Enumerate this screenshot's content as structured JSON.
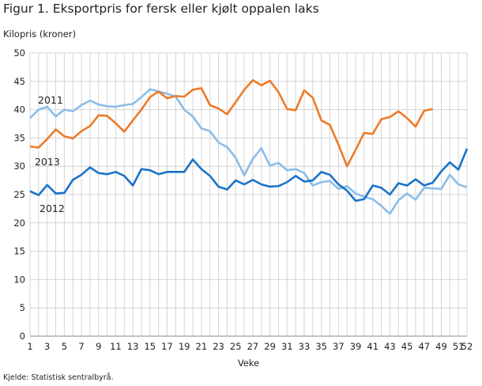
{
  "title": "Figur 1. Eksportpris for fersk eller kjølt oppalen laks",
  "source": "Kjelde: Statistisk sentralbyrå.",
  "chart_data": {
    "type": "line",
    "title": "Figur 1. Eksportpris for fersk eller kjølt oppalen laks",
    "ylabel": "Kilopris (kroner)",
    "xlabel": "Veke",
    "ylim": [
      0,
      50
    ],
    "yticks": [
      0,
      5,
      10,
      15,
      20,
      25,
      30,
      35,
      40,
      45,
      50
    ],
    "xlim": [
      1,
      52
    ],
    "xticks": [
      1,
      3,
      5,
      7,
      9,
      11,
      13,
      15,
      17,
      19,
      21,
      23,
      25,
      27,
      29,
      31,
      33,
      35,
      37,
      39,
      41,
      43,
      45,
      47,
      49,
      51,
      52
    ],
    "grid": true,
    "series": [
      {
        "name": "2011",
        "color": "#8bbde8",
        "values": [
          38.5,
          40,
          40.5,
          38.8,
          40,
          39.7,
          40.8,
          41.6,
          40.9,
          40.6,
          40.5,
          40.8,
          41,
          42.2,
          43.6,
          43.2,
          42.8,
          42.3,
          40,
          38.8,
          36.7,
          36.2,
          34.2,
          33.4,
          31.5,
          28.4,
          31.3,
          33.2,
          30.1,
          30.6,
          29.3,
          29.5,
          28.8,
          26.6,
          27.2,
          27.4,
          26.0,
          26.5,
          25.2,
          24.6,
          24.2,
          23.0,
          21.6,
          24.0,
          25.2,
          24.1,
          26.2,
          26.1,
          26.0,
          28.5,
          26.8,
          26.3
        ]
      },
      {
        "name": "2012",
        "color": "#1a73c9",
        "values": [
          25.6,
          24.9,
          26.7,
          25.2,
          25.3,
          27.6,
          28.5,
          29.8,
          28.8,
          28.6,
          29,
          28.3,
          26.6,
          29.5,
          29.3,
          28.6,
          29,
          29,
          29,
          31.2,
          29.5,
          28.3,
          26.4,
          25.9,
          27.5,
          26.8,
          27.6,
          26.8,
          26.4,
          26.5,
          27.2,
          28.3,
          27.3,
          27.5,
          29,
          28.5,
          26.8,
          25.7,
          23.9,
          24.2,
          26.6,
          26.2,
          25,
          27,
          26.6,
          27.7,
          26.6,
          27.1,
          29.1,
          30.7,
          29.4,
          33.1
        ]
      },
      {
        "name": "2013",
        "color": "#ee7a29",
        "values": [
          33.5,
          33.3,
          34.8,
          36.5,
          35.3,
          34.9,
          36.2,
          37.1,
          39,
          38.9,
          37.6,
          36.1,
          38.1,
          40,
          42.2,
          43.2,
          42,
          42.4,
          42.3,
          43.5,
          43.8,
          40.8,
          40.2,
          39.2,
          41.3,
          43.5,
          45.2,
          44.3,
          45.1,
          43.1,
          40.1,
          39.9,
          43.4,
          42.1,
          38.1,
          37.3,
          33.8,
          30.0,
          32.9,
          35.9,
          35.7,
          38.3,
          38.7,
          39.7,
          38.5,
          37,
          39.8,
          40.1
        ]
      }
    ]
  }
}
